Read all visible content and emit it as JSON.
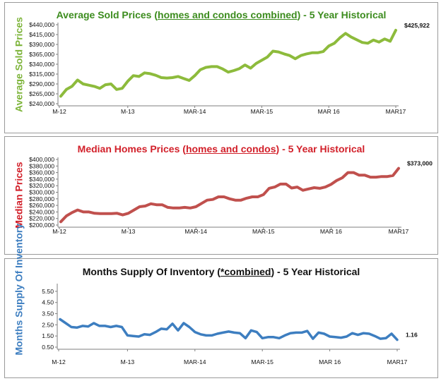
{
  "chart_data": [
    {
      "type": "line",
      "title_parts": [
        "Average Sold Prices (",
        "homes and condos combined",
        ") - 5 Year Historical"
      ],
      "ylabel": "Average Sold Prices",
      "color": "#8dbb3c",
      "title_color": "#3c8c1e",
      "ylim": [
        240000,
        440000
      ],
      "yticks": [
        240000,
        265000,
        290000,
        315000,
        340000,
        365000,
        390000,
        415000,
        440000
      ],
      "ytick_labels": [
        "$240,000",
        "$265,000",
        "$290,000",
        "$315,000",
        "$340,000",
        "$365,000",
        "$390,000",
        "$415,000",
        "$440,000"
      ],
      "xtick_labels": [
        "M-12",
        "M-13",
        "MAR-14",
        "MAR-15",
        "MAR 16",
        "MAR17"
      ],
      "end_label": "$425,922",
      "values": [
        259000,
        276000,
        284000,
        300000,
        290000,
        287000,
        284000,
        279000,
        288000,
        290000,
        276000,
        279000,
        297000,
        311000,
        309000,
        318000,
        316000,
        312000,
        306000,
        305000,
        306000,
        309000,
        304000,
        299000,
        311000,
        326000,
        332000,
        334000,
        334000,
        328000,
        320000,
        324000,
        329000,
        338000,
        330000,
        342000,
        350000,
        358000,
        373000,
        371000,
        366000,
        362000,
        354000,
        362000,
        366000,
        369000,
        369000,
        372000,
        386000,
        393000,
        407000,
        418000,
        409000,
        402000,
        395000,
        393000,
        401000,
        396000,
        404000,
        398000,
        425922
      ]
    },
    {
      "type": "line",
      "title_parts": [
        "Median Homes Prices (",
        "homes and condos",
        ") - 5 Year Historical"
      ],
      "ylabel": "Median Prices",
      "color": "#c0504d",
      "title_color": "#d2202a",
      "ylim": [
        200000,
        400000
      ],
      "yticks": [
        200000,
        220000,
        240000,
        260000,
        280000,
        300000,
        320000,
        340000,
        360000,
        380000,
        400000
      ],
      "ytick_labels": [
        "$200,000",
        "$220,000",
        "$240,000",
        "$260,000",
        "$280,000",
        "$300,000",
        "$320,000",
        "$340,000",
        "$360,000",
        "$380,000",
        "$400,000"
      ],
      "xtick_labels": [
        "M-12",
        "M-13",
        "MAR-14",
        "MAR-15",
        "MAR 16",
        "MAR17"
      ],
      "end_label": "$373,000",
      "values": [
        210000,
        228000,
        238000,
        246000,
        240000,
        240000,
        236000,
        235000,
        235000,
        235000,
        236000,
        231000,
        236000,
        246000,
        256000,
        258000,
        265000,
        262000,
        262000,
        254000,
        252000,
        252000,
        254000,
        252000,
        256000,
        266000,
        276000,
        278000,
        286000,
        286000,
        280000,
        276000,
        276000,
        282000,
        286000,
        286000,
        293000,
        312000,
        316000,
        325000,
        325000,
        313000,
        316000,
        306000,
        310000,
        314000,
        312000,
        316000,
        324000,
        336000,
        344000,
        360000,
        360000,
        352000,
        352000,
        346000,
        346000,
        348000,
        348000,
        351000,
        373000
      ]
    },
    {
      "type": "line",
      "title_parts": [
        "Months Supply Of Inventory (",
        "*combined",
        ") - 5 Year Historical"
      ],
      "ylabel": "Months Supply Of Inventory",
      "color": "#3d7ec0",
      "title_color": "#111111",
      "ylim": [
        0.5,
        6.0
      ],
      "yticks": [
        0.5,
        1.5,
        2.5,
        3.5,
        4.5,
        5.5
      ],
      "ytick_labels": [
        "0.50",
        "1.50",
        "2.50",
        "3.50",
        "4.50",
        "5.50"
      ],
      "xtick_labels": [
        "M-12",
        "M-13",
        "MAR-14",
        "MAR-15",
        "MAR 16",
        "MAR17"
      ],
      "end_label": "1.16",
      "values": [
        3.0,
        2.65,
        2.3,
        2.25,
        2.4,
        2.35,
        2.65,
        2.4,
        2.4,
        2.3,
        2.4,
        2.3,
        1.55,
        1.5,
        1.45,
        1.65,
        1.6,
        1.85,
        2.15,
        2.1,
        2.6,
        2.0,
        2.65,
        2.3,
        1.85,
        1.65,
        1.55,
        1.55,
        1.7,
        1.8,
        1.9,
        1.8,
        1.75,
        1.3,
        2.0,
        1.85,
        1.3,
        1.4,
        1.4,
        1.3,
        1.55,
        1.75,
        1.8,
        1.8,
        1.95,
        1.25,
        1.8,
        1.7,
        1.45,
        1.4,
        1.35,
        1.45,
        1.75,
        1.6,
        1.75,
        1.7,
        1.5,
        1.25,
        1.3,
        1.7,
        1.16
      ]
    }
  ]
}
